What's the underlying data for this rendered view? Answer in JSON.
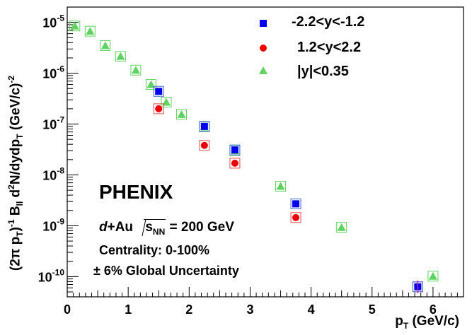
{
  "chart_data": {
    "type": "scatter",
    "xlabel": "p_T (GeV/c)",
    "ylabel": "(2π p_T)^-1 B_ll d²N/dydp_T (GeV/c)^-2",
    "xlim": [
      0,
      6.5
    ],
    "ylim": [
      4e-11,
      2e-05
    ],
    "yscale": "log",
    "x_ticks": [
      "0",
      "1",
      "2",
      "3",
      "4",
      "5",
      "6"
    ],
    "y_ticks": [
      {
        "base": "10",
        "exp": "-5"
      },
      {
        "base": "10",
        "exp": "-6"
      },
      {
        "base": "10",
        "exp": "-7"
      },
      {
        "base": "10",
        "exp": "-8"
      },
      {
        "base": "10",
        "exp": "-9"
      },
      {
        "base": "10",
        "exp": "-10"
      }
    ],
    "legend_position": "top-right",
    "series": [
      {
        "name": "-2.2<y<-1.2",
        "marker": "square",
        "color": "#0000ee",
        "x": [
          1.5,
          2.25,
          2.75,
          3.75,
          5.75
        ],
        "y": [
          4.4e-07,
          9e-08,
          3.1e-08,
          2.7e-09,
          6.3e-11
        ]
      },
      {
        "name": "1.2<y<2.2",
        "marker": "circle",
        "color": "#ee0000",
        "x": [
          1.5,
          2.25,
          2.75,
          3.75,
          5.75
        ],
        "y": [
          2e-07,
          3.8e-08,
          1.7e-08,
          1.45e-09,
          6.3e-11
        ]
      },
      {
        "name": "|y|<0.35",
        "marker": "triangle",
        "color": "#5fd35f",
        "x": [
          0.125,
          0.375,
          0.625,
          0.875,
          1.125,
          1.375,
          1.625,
          1.875,
          2.25,
          2.75,
          3.5,
          4.5,
          6.0
        ],
        "y": [
          8.5e-06,
          6.7e-06,
          3.5e-06,
          2.15e-06,
          1.15e-06,
          6e-07,
          2.7e-07,
          1.55e-07,
          8.8e-08,
          3e-08,
          6e-09,
          9.3e-10,
          1.02e-10
        ]
      }
    ],
    "annotations": {
      "experiment": "PHENIX",
      "system_d": "d",
      "system_rest": "+Au",
      "energy_s": "s",
      "energy_nn": "NN",
      "energy_value": "= 200 GeV",
      "centrality": "Centrality: 0-100%",
      "uncertainty": "± 6% Global Uncertainty"
    }
  }
}
